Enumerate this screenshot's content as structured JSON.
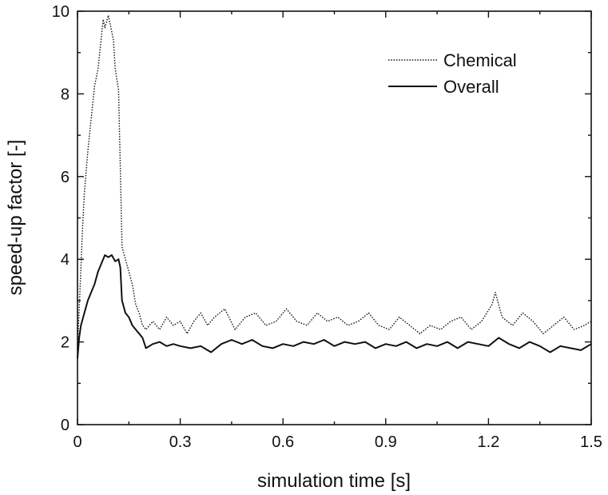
{
  "chart_data": {
    "type": "line",
    "xlabel": "simulation time [s]",
    "ylabel": "speed-up factor [-]",
    "xlim": [
      0,
      1.5
    ],
    "ylim": [
      0,
      10
    ],
    "xticks": [
      0,
      0.3,
      0.6,
      0.9,
      1.2,
      1.5
    ],
    "xtick_labels": [
      "0",
      "0.3",
      "0.6",
      "0.9",
      "1.2",
      "1.5"
    ],
    "yticks": [
      0,
      2,
      4,
      6,
      8,
      10
    ],
    "ytick_labels": [
      "0",
      "2",
      "4",
      "6",
      "8",
      "10"
    ],
    "grid": false,
    "legend_position": "top-right",
    "series": [
      {
        "name": "Chemical",
        "line_style": "dotted",
        "color": "#111111",
        "x": [
          0,
          0.005,
          0.01,
          0.015,
          0.02,
          0.03,
          0.04,
          0.05,
          0.06,
          0.07,
          0.075,
          0.08,
          0.09,
          0.1,
          0.105,
          0.11,
          0.12,
          0.125,
          0.13,
          0.14,
          0.15,
          0.16,
          0.17,
          0.18,
          0.19,
          0.2,
          0.22,
          0.24,
          0.26,
          0.28,
          0.3,
          0.32,
          0.34,
          0.36,
          0.38,
          0.4,
          0.43,
          0.46,
          0.49,
          0.52,
          0.55,
          0.58,
          0.61,
          0.64,
          0.67,
          0.7,
          0.73,
          0.76,
          0.79,
          0.82,
          0.85,
          0.88,
          0.91,
          0.94,
          0.97,
          1.0,
          1.03,
          1.06,
          1.09,
          1.12,
          1.15,
          1.18,
          1.21,
          1.22,
          1.24,
          1.27,
          1.3,
          1.33,
          1.36,
          1.39,
          1.42,
          1.45,
          1.48,
          1.5
        ],
        "y": [
          1.8,
          2.8,
          3.8,
          4.8,
          5.6,
          6.6,
          7.4,
          8.2,
          8.6,
          9.4,
          9.8,
          9.6,
          9.9,
          9.5,
          9.3,
          8.6,
          8.1,
          6.2,
          4.3,
          4.0,
          3.7,
          3.4,
          2.9,
          2.7,
          2.4,
          2.3,
          2.5,
          2.3,
          2.6,
          2.4,
          2.5,
          2.2,
          2.5,
          2.7,
          2.4,
          2.6,
          2.8,
          2.3,
          2.6,
          2.7,
          2.4,
          2.5,
          2.8,
          2.5,
          2.4,
          2.7,
          2.5,
          2.6,
          2.4,
          2.5,
          2.7,
          2.4,
          2.3,
          2.6,
          2.4,
          2.2,
          2.4,
          2.3,
          2.5,
          2.6,
          2.3,
          2.5,
          2.9,
          3.2,
          2.6,
          2.4,
          2.7,
          2.5,
          2.2,
          2.4,
          2.6,
          2.3,
          2.4,
          2.5
        ]
      },
      {
        "name": "Overall",
        "line_style": "solid",
        "color": "#111111",
        "x": [
          0,
          0.005,
          0.01,
          0.02,
          0.03,
          0.04,
          0.05,
          0.06,
          0.07,
          0.08,
          0.09,
          0.1,
          0.11,
          0.12,
          0.125,
          0.13,
          0.14,
          0.15,
          0.16,
          0.17,
          0.18,
          0.19,
          0.2,
          0.22,
          0.24,
          0.26,
          0.28,
          0.3,
          0.33,
          0.36,
          0.39,
          0.42,
          0.45,
          0.48,
          0.51,
          0.54,
          0.57,
          0.6,
          0.63,
          0.66,
          0.69,
          0.72,
          0.75,
          0.78,
          0.81,
          0.84,
          0.87,
          0.9,
          0.93,
          0.96,
          0.99,
          1.02,
          1.05,
          1.08,
          1.11,
          1.14,
          1.17,
          1.2,
          1.23,
          1.26,
          1.29,
          1.32,
          1.35,
          1.38,
          1.41,
          1.44,
          1.47,
          1.5
        ],
        "y": [
          1.6,
          2.1,
          2.4,
          2.7,
          3.0,
          3.2,
          3.4,
          3.7,
          3.9,
          4.1,
          4.05,
          4.1,
          3.95,
          4.0,
          3.8,
          3.0,
          2.7,
          2.6,
          2.4,
          2.3,
          2.2,
          2.1,
          1.85,
          1.95,
          2.0,
          1.9,
          1.95,
          1.9,
          1.85,
          1.9,
          1.75,
          1.95,
          2.05,
          1.95,
          2.05,
          1.9,
          1.85,
          1.95,
          1.9,
          2.0,
          1.95,
          2.05,
          1.9,
          2.0,
          1.95,
          2.0,
          1.85,
          1.95,
          1.9,
          2.0,
          1.85,
          1.95,
          1.9,
          2.0,
          1.85,
          2.0,
          1.95,
          1.9,
          2.1,
          1.95,
          1.85,
          2.0,
          1.9,
          1.75,
          1.9,
          1.85,
          1.8,
          1.95
        ]
      }
    ]
  }
}
